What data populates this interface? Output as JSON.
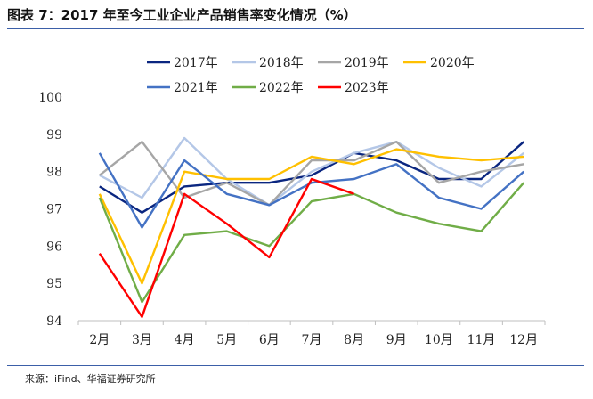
{
  "figure": {
    "title": "图表 7：2017 年至今工业企业产品销售率变化情况（%）",
    "source": "来源：iFind、华福证券研究所"
  },
  "chart_data": {
    "type": "line",
    "categories": [
      "2月",
      "3月",
      "4月",
      "5月",
      "6月",
      "7月",
      "8月",
      "9月",
      "10月",
      "11月",
      "12月"
    ],
    "ylim": [
      94,
      100
    ],
    "yticks": [
      "94",
      "95",
      "96",
      "97",
      "98",
      "99",
      "100"
    ],
    "grid": false,
    "legend": "top-center",
    "series": [
      {
        "name": "2017年",
        "color": "#0a2680",
        "values": [
          97.6,
          96.9,
          97.6,
          97.7,
          97.7,
          97.9,
          98.5,
          98.3,
          97.8,
          97.8,
          98.8
        ]
      },
      {
        "name": "2018年",
        "color": "#b4c7e7",
        "values": [
          97.9,
          97.3,
          98.9,
          97.8,
          97.1,
          98.0,
          98.5,
          98.8,
          98.1,
          97.6,
          98.5
        ]
      },
      {
        "name": "2019年",
        "color": "#a6a6a6",
        "values": [
          97.9,
          98.8,
          97.3,
          97.7,
          97.1,
          98.3,
          98.3,
          98.8,
          97.7,
          98.0,
          98.2
        ]
      },
      {
        "name": "2020年",
        "color": "#ffc000",
        "values": [
          97.4,
          95.0,
          98.0,
          97.8,
          97.8,
          98.4,
          98.2,
          98.6,
          98.4,
          98.3,
          98.4
        ]
      },
      {
        "name": "2021年",
        "color": "#4472c4",
        "values": [
          98.5,
          96.5,
          98.3,
          97.4,
          97.1,
          97.7,
          97.8,
          98.2,
          97.3,
          97.0,
          98.0
        ]
      },
      {
        "name": "2022年",
        "color": "#70ad47",
        "values": [
          97.3,
          94.5,
          96.3,
          96.4,
          96.0,
          97.2,
          97.4,
          96.9,
          96.6,
          96.4,
          97.7
        ]
      },
      {
        "name": "2023年",
        "color": "#ff0000",
        "values": [
          95.8,
          94.1,
          97.4,
          96.6,
          95.7,
          97.8,
          97.4,
          null,
          null,
          null,
          null
        ]
      }
    ]
  }
}
